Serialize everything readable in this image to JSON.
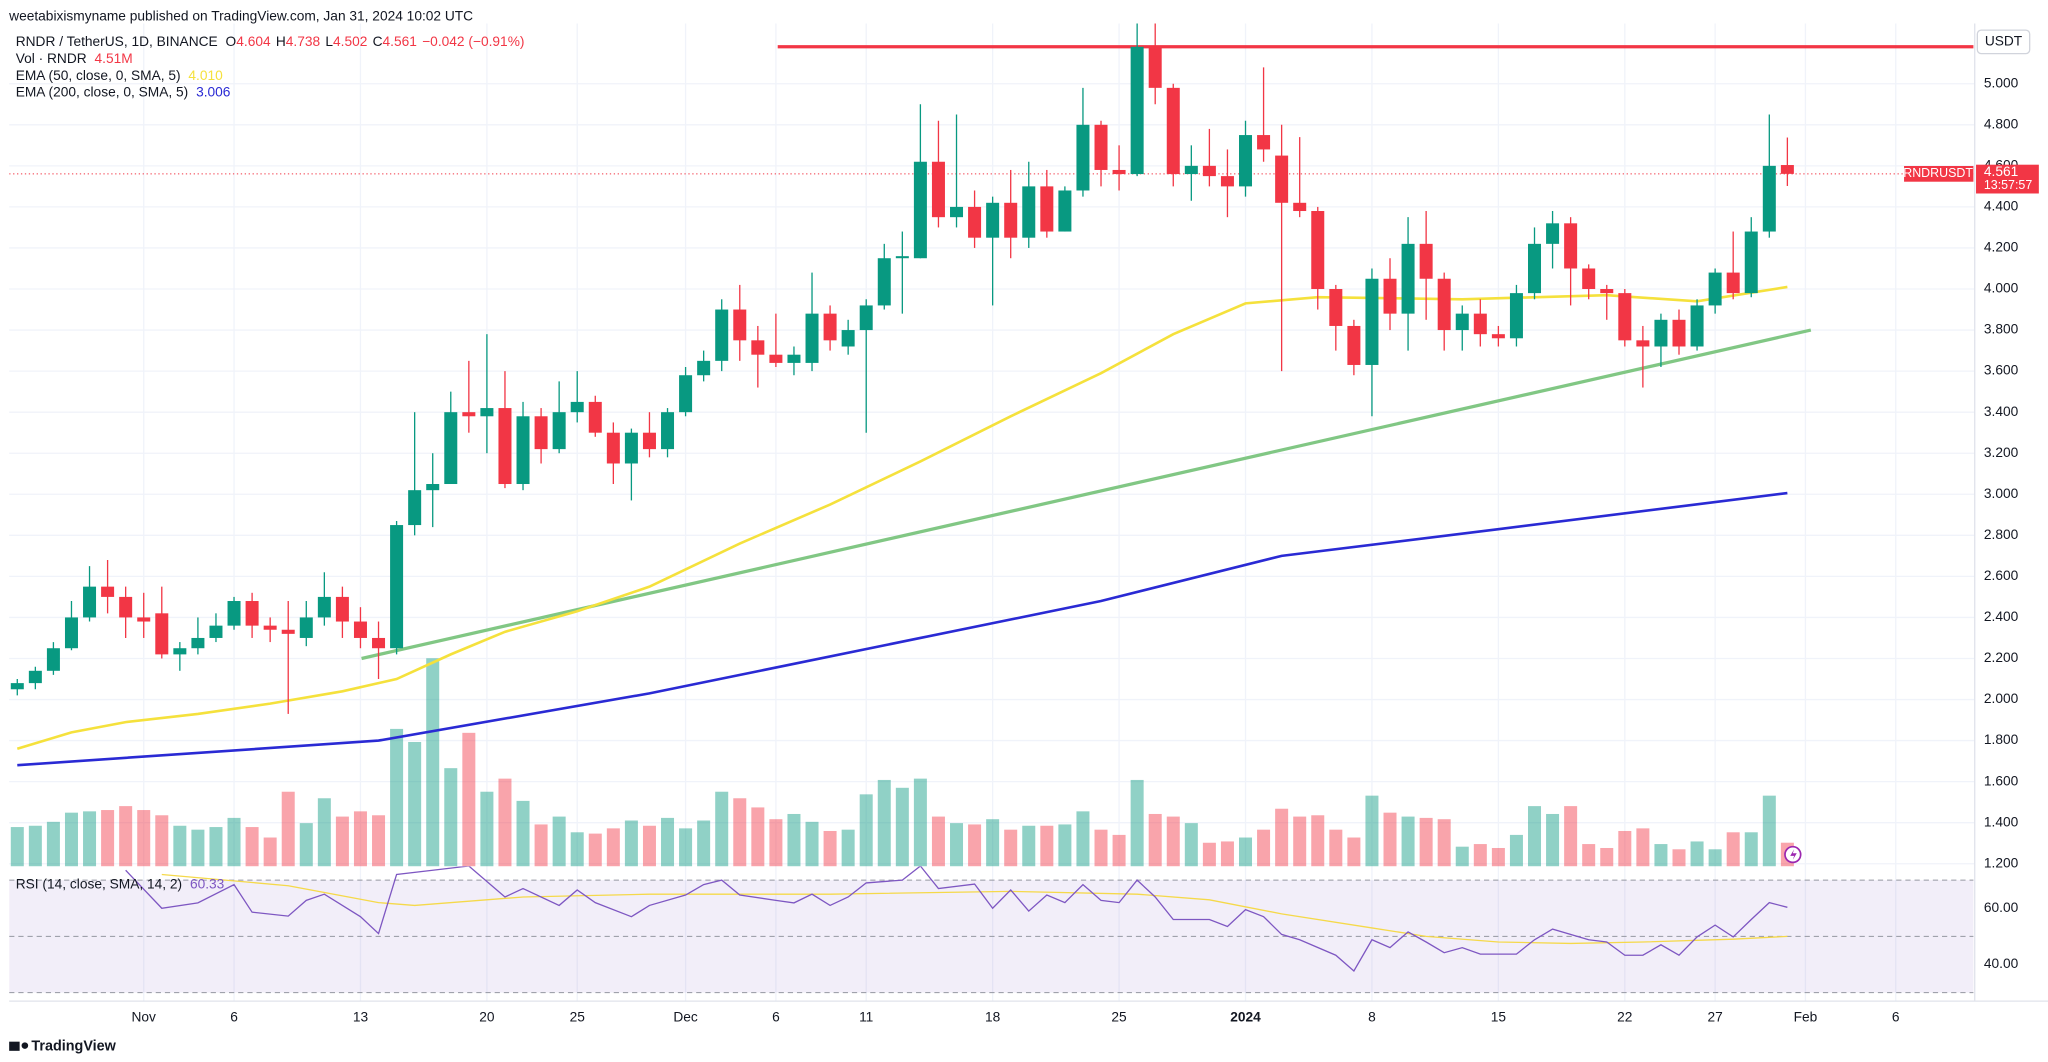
{
  "header": {
    "publisher": "weetabixismyname published on TradingView.com, Jan 31, 2024 10:02 UTC"
  },
  "chart_data": {
    "type": "candlestick",
    "title": "RNDR / TetherUS, 1D, BINANCE",
    "ohlc_legend": [
      {
        "label": "O",
        "value": "4.604"
      },
      {
        "label": "H",
        "value": "4.738"
      },
      {
        "label": "L",
        "value": "4.502"
      },
      {
        "label": "C",
        "value": "4.561"
      }
    ],
    "change": "−0.042 (−0.91%)",
    "x": [
      0,
      1,
      2,
      3,
      4,
      5,
      6,
      7,
      8,
      9,
      10,
      11,
      12,
      13,
      14,
      15,
      16,
      17,
      18,
      19,
      20,
      21,
      22,
      23,
      24,
      25,
      26,
      27,
      28,
      29,
      30,
      31,
      32,
      33,
      34,
      35,
      36,
      37,
      38,
      39,
      40,
      41,
      42,
      43,
      44,
      45,
      46,
      47,
      48,
      49,
      50,
      51,
      52,
      53,
      54,
      55,
      56,
      57,
      58,
      59,
      60,
      61,
      62,
      63,
      64,
      65,
      66,
      67,
      68,
      69,
      70,
      71,
      72,
      73,
      74,
      75,
      76,
      77,
      78,
      79,
      80,
      81,
      82,
      83,
      84,
      85,
      86,
      87,
      88,
      89,
      90,
      91,
      92,
      93,
      94,
      95,
      96,
      97,
      98
    ],
    "open": [
      2.05,
      2.08,
      2.14,
      2.25,
      2.4,
      2.55,
      2.5,
      2.4,
      2.42,
      2.22,
      2.25,
      2.3,
      2.36,
      2.48,
      2.36,
      2.34,
      2.3,
      2.4,
      2.5,
      2.38,
      2.3,
      2.25,
      2.85,
      3.02,
      3.05,
      3.4,
      3.38,
      3.42,
      3.05,
      3.38,
      3.22,
      3.4,
      3.45,
      3.3,
      3.15,
      3.3,
      3.22,
      3.4,
      3.58,
      3.65,
      3.9,
      3.75,
      3.68,
      3.64,
      3.64,
      3.88,
      3.72,
      3.8,
      3.92,
      4.15,
      4.15,
      4.62,
      4.35,
      4.4,
      4.25,
      4.42,
      4.25,
      4.5,
      4.28,
      4.48,
      4.8,
      4.58,
      4.56,
      5.18,
      4.98,
      4.56,
      4.6,
      4.55,
      4.5,
      4.75,
      4.65,
      4.42,
      4.38,
      4.0,
      3.82,
      3.63,
      4.05,
      3.88,
      4.22,
      4.05,
      3.8,
      3.88,
      3.78,
      3.76,
      3.98,
      4.22,
      4.32,
      4.1,
      4.0,
      3.98,
      3.75,
      3.72,
      3.85,
      3.72,
      3.92,
      4.08,
      3.98,
      4.28,
      4.604
    ],
    "high": [
      2.1,
      2.16,
      2.28,
      2.48,
      2.65,
      2.68,
      2.55,
      2.52,
      2.55,
      2.28,
      2.4,
      2.42,
      2.5,
      2.52,
      2.4,
      2.48,
      2.48,
      2.62,
      2.55,
      2.45,
      2.38,
      2.87,
      3.4,
      3.2,
      3.5,
      3.65,
      3.78,
      3.6,
      3.45,
      3.42,
      3.55,
      3.6,
      3.48,
      3.35,
      3.32,
      3.4,
      3.42,
      3.62,
      3.7,
      3.95,
      4.02,
      3.82,
      3.88,
      3.72,
      4.08,
      3.92,
      3.85,
      3.95,
      4.22,
      4.28,
      4.9,
      4.82,
      4.85,
      4.48,
      4.45,
      4.58,
      4.62,
      4.58,
      4.5,
      4.98,
      4.82,
      4.7,
      5.3,
      5.3,
      5.0,
      4.7,
      4.78,
      4.68,
      4.82,
      5.08,
      4.8,
      4.74,
      4.4,
      4.02,
      3.85,
      4.1,
      4.15,
      4.35,
      4.38,
      4.08,
      3.92,
      3.95,
      3.82,
      4.02,
      4.3,
      4.38,
      4.35,
      4.12,
      4.02,
      4.0,
      3.82,
      3.88,
      3.9,
      3.95,
      4.1,
      4.28,
      4.35,
      4.85,
      4.738
    ],
    "low": [
      2.02,
      2.05,
      2.12,
      2.24,
      2.38,
      2.42,
      2.3,
      2.3,
      2.2,
      2.14,
      2.22,
      2.28,
      2.34,
      2.3,
      2.28,
      1.93,
      2.26,
      2.36,
      2.3,
      2.25,
      2.1,
      2.22,
      2.8,
      2.84,
      3.05,
      3.3,
      3.2,
      3.03,
      3.02,
      3.15,
      3.2,
      3.35,
      3.28,
      3.05,
      2.97,
      3.18,
      3.18,
      3.38,
      3.55,
      3.6,
      3.65,
      3.52,
      3.62,
      3.58,
      3.6,
      3.7,
      3.68,
      3.3,
      3.9,
      3.88,
      4.15,
      4.3,
      4.3,
      4.2,
      3.92,
      4.15,
      4.2,
      4.25,
      4.28,
      4.45,
      4.5,
      4.48,
      4.55,
      4.9,
      4.5,
      4.43,
      4.5,
      4.35,
      4.45,
      4.62,
      3.6,
      4.35,
      3.9,
      3.7,
      3.58,
      3.38,
      3.8,
      3.7,
      3.85,
      3.7,
      3.7,
      3.72,
      3.72,
      3.72,
      3.95,
      4.1,
      3.92,
      3.95,
      3.85,
      3.72,
      3.52,
      3.62,
      3.68,
      3.7,
      3.88,
      3.95,
      3.96,
      4.25,
      4.502
    ],
    "close": [
      2.08,
      2.14,
      2.25,
      2.4,
      2.55,
      2.5,
      2.4,
      2.38,
      2.22,
      2.25,
      2.3,
      2.36,
      2.48,
      2.36,
      2.34,
      2.32,
      2.4,
      2.5,
      2.38,
      2.3,
      2.25,
      2.85,
      3.02,
      3.05,
      3.4,
      3.38,
      3.42,
      3.05,
      3.38,
      3.22,
      3.4,
      3.45,
      3.3,
      3.15,
      3.3,
      3.22,
      3.4,
      3.58,
      3.65,
      3.9,
      3.75,
      3.68,
      3.64,
      3.68,
      3.88,
      3.75,
      3.8,
      3.92,
      4.15,
      4.16,
      4.62,
      4.35,
      4.4,
      4.25,
      4.42,
      4.25,
      4.5,
      4.28,
      4.48,
      4.8,
      4.58,
      4.56,
      5.18,
      4.98,
      4.56,
      4.6,
      4.55,
      4.5,
      4.75,
      4.68,
      4.42,
      4.38,
      4.0,
      3.82,
      3.63,
      4.05,
      3.88,
      4.22,
      4.05,
      3.8,
      3.88,
      3.78,
      3.76,
      3.98,
      4.22,
      4.32,
      4.1,
      4.0,
      3.98,
      3.75,
      3.72,
      3.85,
      3.72,
      3.92,
      4.08,
      3.98,
      4.28,
      4.6,
      4.561
    ],
    "xlim": [
      -0.45,
      108.3
    ],
    "xticks": [
      {
        "value": 7,
        "label": "Nov"
      },
      {
        "value": 12,
        "label": "6"
      },
      {
        "value": 19,
        "label": "13"
      },
      {
        "value": 26,
        "label": "20"
      },
      {
        "value": 31,
        "label": "25"
      },
      {
        "value": 37,
        "label": "Dec"
      },
      {
        "value": 42,
        "label": "6"
      },
      {
        "value": 47,
        "label": "11"
      },
      {
        "value": 54,
        "label": "18"
      },
      {
        "value": 61,
        "label": "25"
      },
      {
        "value": 68,
        "label": "2024"
      },
      {
        "value": 75,
        "label": "8"
      },
      {
        "value": 82,
        "label": "15"
      },
      {
        "value": 89,
        "label": "22"
      },
      {
        "value": 94,
        "label": "27"
      },
      {
        "value": 99,
        "label": "Feb"
      },
      {
        "value": 104,
        "label": "6"
      }
    ],
    "ylim": [
      1.1875,
      5.2805
    ],
    "yticks": [
      {
        "value": 1.2,
        "label": "1.200"
      },
      {
        "value": 1.4,
        "label": "1.400"
      },
      {
        "value": 1.6,
        "label": "1.600"
      },
      {
        "value": 1.8,
        "label": "1.800"
      },
      {
        "value": 2.0,
        "label": "2.000"
      },
      {
        "value": 2.2,
        "label": "2.200"
      },
      {
        "value": 2.4,
        "label": "2.400"
      },
      {
        "value": 2.6,
        "label": "2.600"
      },
      {
        "value": 2.8,
        "label": "2.800"
      },
      {
        "value": 3.0,
        "label": "3.000"
      },
      {
        "value": 3.2,
        "label": "3.200"
      },
      {
        "value": 3.4,
        "label": "3.400"
      },
      {
        "value": 3.6,
        "label": "3.600"
      },
      {
        "value": 3.8,
        "label": "3.800"
      },
      {
        "value": 4.0,
        "label": "4.000"
      },
      {
        "value": 4.2,
        "label": "4.200"
      },
      {
        "value": 4.4,
        "label": "4.400"
      },
      {
        "value": 4.6,
        "label": "4.600"
      },
      {
        "value": 4.8,
        "label": "4.800"
      },
      {
        "value": 5.0,
        "label": "5.000"
      }
    ],
    "grid": true,
    "y_unit": "USDT",
    "colors": {
      "up": "#089981",
      "down": "#f23645"
    },
    "last_price": {
      "symbol": "RNDRUSDT",
      "value": 4.561,
      "label": "4.561",
      "countdown": "13:57:57"
    },
    "volume": {
      "name": "Vol · RNDR",
      "last_label": "4.51M",
      "vlim": [
        0,
        40
      ],
      "values": [
        7.5,
        7.75,
        8.5,
        10.25,
        10.5,
        10.75,
        11.5,
        10.75,
        9.75,
        7.75,
        7,
        7.5,
        9.25,
        7.5,
        5.5,
        14.25,
        8.25,
        13,
        9.5,
        10.5,
        9.75,
        26.25,
        23.75,
        39.75,
        18.75,
        25.5,
        14.25,
        16.75,
        12.5,
        8,
        9.5,
        6.5,
        6.25,
        7.25,
        8.75,
        7.75,
        9.25,
        7.25,
        8.75,
        14.25,
        13,
        11.25,
        9,
        10,
        8.5,
        6.75,
        7,
        13.75,
        16.5,
        15,
        16.75,
        9.5,
        8.25,
        8,
        9,
        7,
        7.75,
        7.75,
        8,
        10.5,
        7,
        6,
        16.5,
        10,
        9.5,
        8.25,
        4.5,
        4.75,
        5.5,
        7,
        11,
        9.5,
        9.75,
        7,
        5.5,
        13.5,
        10.25,
        9.5,
        9.25,
        9,
        3.75,
        4.25,
        3.5,
        6,
        11.5,
        10,
        11.5,
        4.25,
        3.5,
        6.75,
        7.25,
        4.25,
        3.25,
        4.75,
        3.25,
        6.5,
        6.5,
        13.5,
        4.51
      ]
    },
    "series": [
      {
        "name": "EMA (50, close, 0, SMA, 5)",
        "color": "#f5e13c",
        "last_label": "4.010",
        "x": [
          0,
          3,
          6,
          10,
          14,
          18,
          21,
          24,
          27,
          31,
          35,
          40,
          45,
          50,
          55,
          60,
          64,
          68,
          72,
          80,
          88,
          93,
          98
        ],
        "values": [
          1.76,
          1.84,
          1.89,
          1.93,
          1.98,
          2.04,
          2.1,
          2.22,
          2.33,
          2.43,
          2.55,
          2.76,
          2.95,
          3.16,
          3.38,
          3.59,
          3.78,
          3.93,
          3.96,
          3.95,
          3.97,
          3.94,
          4.01
        ]
      },
      {
        "name": "EMA (200, close, 0, SMA, 5)",
        "color": "#2a2ad4",
        "last_label": "3.006",
        "x": [
          0,
          20,
          35,
          50,
          60,
          70,
          82,
          98
        ],
        "values": [
          1.68,
          1.8,
          2.03,
          2.3,
          2.48,
          2.7,
          2.83,
          3.006
        ]
      }
    ],
    "lines": [
      {
        "color": "#f23645",
        "x": [
          42.1,
          108.3
        ],
        "values": [
          5.18,
          5.18
        ]
      },
      {
        "color": "#81c784",
        "x": [
          19.06,
          99.3
        ],
        "values": [
          2.2,
          3.8
        ]
      }
    ],
    "rsi": {
      "name": "RSI (14, close, SMA, 14, 2)",
      "last_label": "60.33",
      "color": "#7e57c2",
      "ylim": [
        27,
        74.9
      ],
      "levels": [
        70,
        50,
        30
      ],
      "yticks": [
        {
          "value": 40,
          "label": "40.00"
        },
        {
          "value": 60,
          "label": "60.00"
        }
      ],
      "x": [
        6,
        8,
        10,
        12,
        13,
        15,
        16,
        17,
        19,
        20,
        21,
        23,
        25,
        27,
        28,
        30,
        31,
        32,
        34,
        35,
        37,
        38,
        39,
        40,
        42,
        43,
        44,
        45,
        46,
        47,
        49,
        50,
        51,
        53,
        54,
        55,
        56,
        57,
        58,
        59,
        60,
        61,
        62,
        63,
        64,
        66,
        67,
        68,
        69,
        70,
        71,
        73,
        74,
        75,
        76,
        77,
        78,
        79,
        80,
        81,
        83,
        84,
        85,
        87,
        88,
        89,
        90,
        91,
        92,
        93,
        94,
        95,
        96,
        97,
        98
      ],
      "values": [
        73.5,
        60,
        61.9,
        68.4,
        58.6,
        57.2,
        62.8,
        65,
        57,
        51,
        72,
        73.5,
        75,
        64,
        67,
        61,
        66.5,
        62,
        57,
        61,
        64.7,
        68.4,
        70,
        64.7,
        62.8,
        61.9,
        65,
        61,
        64,
        69,
        70,
        75,
        67,
        68.6,
        60,
        66.5,
        59,
        64.7,
        62,
        68.4,
        62.8,
        62,
        70,
        64,
        56,
        56,
        53.5,
        59.5,
        57,
        50.7,
        48.8,
        43.3,
        37.7,
        48.8,
        46,
        51.6,
        48,
        44.2,
        46,
        43.7,
        43.7,
        48.8,
        52.6,
        48.8,
        48,
        43.3,
        43.3,
        47,
        43.3,
        49.8,
        54,
        49.8,
        56,
        62,
        60.33
      ],
      "ma": {
        "color": "#f5d94a",
        "x": [
          8,
          15,
          20,
          22,
          28,
          35,
          45,
          55,
          62,
          66,
          70,
          75,
          78,
          82,
          86,
          90,
          95,
          98
        ],
        "values": [
          72,
          68,
          62,
          61,
          64,
          65,
          65,
          66,
          65,
          63,
          58,
          53,
          50,
          48,
          47.5,
          48,
          49,
          50
        ]
      }
    }
  },
  "footer": {
    "brand": "TradingView"
  }
}
